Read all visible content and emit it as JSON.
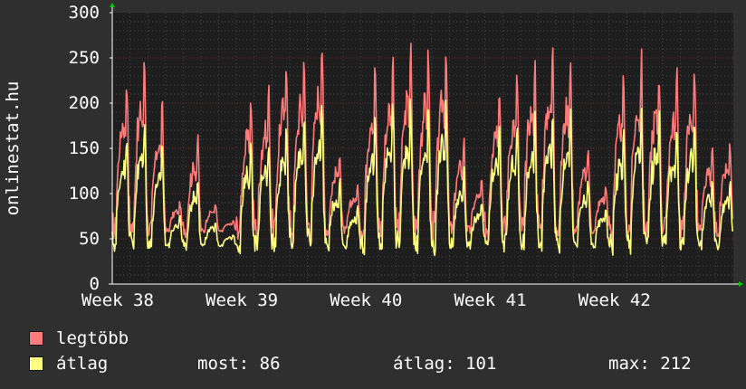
{
  "chart_data": {
    "type": "line",
    "ylabel": "onlinestat.hu",
    "ylim": [
      0,
      300
    ],
    "y_ticks": [
      "0",
      "50",
      "100",
      "150",
      "200",
      "250",
      "300"
    ],
    "x_ticks": [
      "Week 38",
      "Week 39",
      "Week 40",
      "Week 41",
      "Week 42"
    ],
    "days": 35,
    "series": [
      {
        "name": "legtöbb",
        "color": "#ff7b7b",
        "daily_peaks": [
          230,
          245,
          195,
          90,
          160,
          90,
          70,
          205,
          215,
          250,
          255,
          270,
          150,
          110,
          240,
          250,
          260,
          255,
          265,
          160,
          115,
          225,
          230,
          245,
          260,
          250,
          150,
          110,
          225,
          250,
          240,
          230,
          240,
          150,
          155
        ]
      },
      {
        "name": "átlag",
        "color": "#ffff80",
        "daily_peaks": [
          170,
          180,
          150,
          75,
          120,
          70,
          55,
          155,
          160,
          180,
          190,
          200,
          115,
          85,
          180,
          200,
          200,
          190,
          200,
          125,
          90,
          170,
          175,
          185,
          195,
          190,
          115,
          85,
          170,
          190,
          185,
          175,
          180,
          115,
          115
        ]
      }
    ],
    "grid": true
  },
  "legend": {
    "items": [
      {
        "label": "legtöbb",
        "color": "#ff7b7b"
      },
      {
        "label": "átlag",
        "color": "#ffff80"
      }
    ],
    "stats": [
      {
        "label": "most: 86"
      },
      {
        "label": "átlag: 101"
      },
      {
        "label": "max: 212"
      }
    ]
  }
}
